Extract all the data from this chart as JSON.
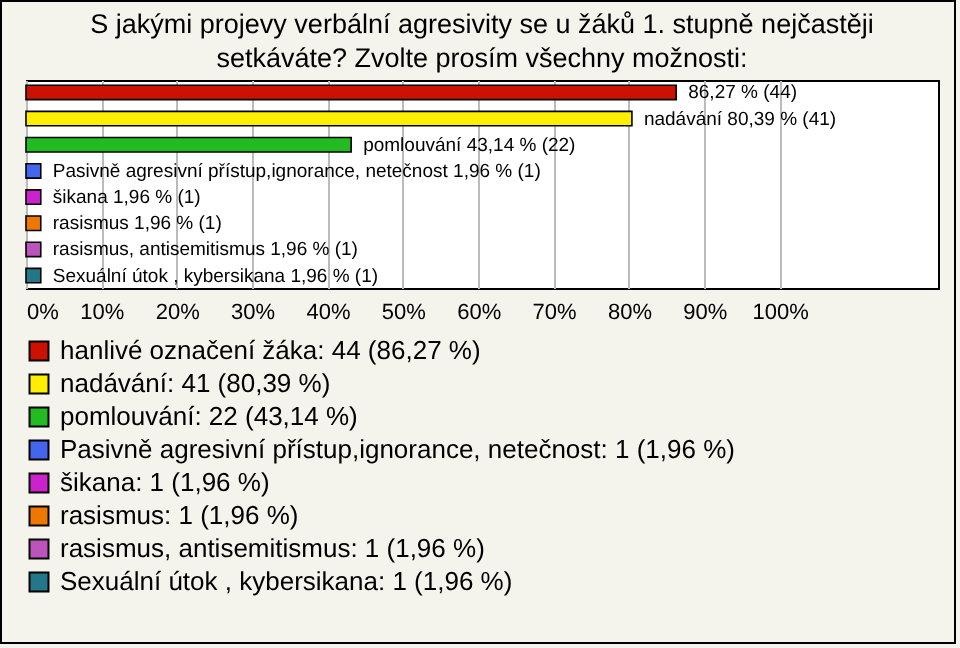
{
  "chart_data": {
    "type": "bar",
    "orientation": "horizontal",
    "title": "S jakými projevy verbální agresivity se u žáků 1. stupně nejčastěji setkáváte? Zvolte prosím všechny možnosti:",
    "categories": [
      null,
      null,
      null,
      null,
      null,
      null,
      null,
      null
    ],
    "series": [
      {
        "name": "hanlivé označení žáka: 44 (86,27 %)",
        "color": "#cc1100",
        "values": [
          86.27,
          null,
          null,
          null,
          null,
          null,
          null,
          null
        ],
        "value_labels": [
          "86,27 % (44)",
          null,
          null,
          null,
          null,
          null,
          null,
          null
        ]
      },
      {
        "name": "nadávání: 41 (80,39 %)",
        "color": "#ffee00",
        "values": [
          null,
          80.39,
          null,
          null,
          null,
          null,
          null,
          null
        ],
        "value_labels": [
          null,
          "nadávání 80,39 % (41)",
          null,
          null,
          null,
          null,
          null,
          null
        ]
      },
      {
        "name": "pomlouvání: 22 (43,14 %)",
        "color": "#22bb22",
        "values": [
          null,
          null,
          43.14,
          null,
          null,
          null,
          null,
          null
        ],
        "value_labels": [
          null,
          null,
          "pomlouvání 43,14 % (22)",
          null,
          null,
          null,
          null,
          null
        ]
      },
      {
        "name": "Pasivně agresivní přístup,ignorance, netečnost: 1 (1,96 %)",
        "color": "#4466ee",
        "values": [
          null,
          null,
          null,
          1.96,
          null,
          null,
          null,
          null
        ],
        "value_labels": [
          null,
          null,
          null,
          "Pasivně agresivní přístup,ignorance, netečnost 1,96 % (1)",
          null,
          null,
          null,
          null
        ]
      },
      {
        "name": "šikana: 1 (1,96 %)",
        "color": "#cc22cc",
        "values": [
          null,
          null,
          null,
          null,
          1.96,
          null,
          null,
          null
        ],
        "value_labels": [
          null,
          null,
          null,
          null,
          "šikana 1,96 % (1)",
          null,
          null,
          null
        ]
      },
      {
        "name": "rasismus: 1 (1,96 %)",
        "color": "#ee7700",
        "values": [
          null,
          null,
          null,
          null,
          null,
          1.96,
          null,
          null
        ],
        "value_labels": [
          null,
          null,
          null,
          null,
          null,
          "rasismus 1,96 % (1)",
          null,
          null
        ]
      },
      {
        "name": "rasismus, antisemitismus: 1 (1,96 %)",
        "color": "#bb55bb",
        "values": [
          null,
          null,
          null,
          null,
          null,
          null,
          1.96,
          null
        ],
        "value_labels": [
          null,
          null,
          null,
          null,
          null,
          null,
          "rasismus, antisemitismus 1,96 % (1)",
          null
        ]
      },
      {
        "name": "Sexuální útok , kybersikana: 1 (1,96 %)",
        "color": "#227788",
        "values": [
          null,
          null,
          null,
          null,
          null,
          null,
          null,
          1.96
        ],
        "value_labels": [
          null,
          null,
          null,
          null,
          null,
          null,
          null,
          "Sexuální útok , kybersikana 1,96 % (1)"
        ]
      }
    ],
    "xlim": [
      0,
      121
    ],
    "xticks": [
      {
        "value": 0,
        "label": "0%"
      },
      {
        "value": 10,
        "label": "10%"
      },
      {
        "value": 20,
        "label": "20%"
      },
      {
        "value": 30,
        "label": "30%"
      },
      {
        "value": 40,
        "label": "40%"
      },
      {
        "value": 50,
        "label": "50%"
      },
      {
        "value": 60,
        "label": "60%"
      },
      {
        "value": 70,
        "label": "70%"
      },
      {
        "value": 80,
        "label": "80%"
      },
      {
        "value": 90,
        "label": "90%"
      },
      {
        "value": 100,
        "label": "100%"
      }
    ],
    "grid": "x",
    "legend": "bottom",
    "tick_labels": "x"
  }
}
